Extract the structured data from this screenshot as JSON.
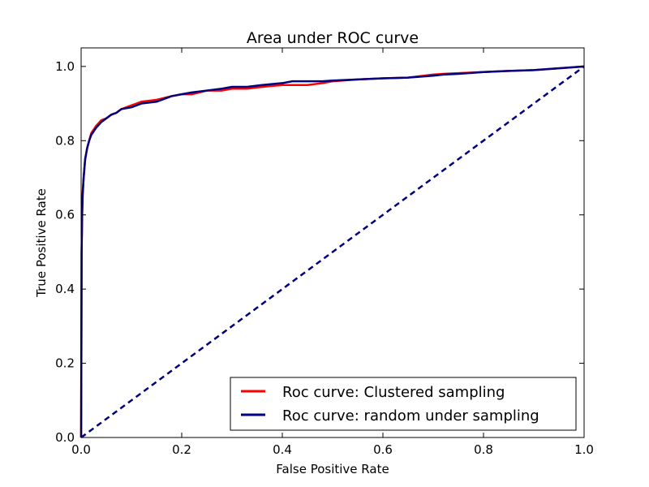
{
  "chart_data": {
    "type": "line",
    "title": "Area under ROC curve",
    "xlabel": "False Positive Rate",
    "ylabel": "True Positive Rate",
    "xlim": [
      0.0,
      1.0
    ],
    "ylim": [
      0.0,
      1.05
    ],
    "xticks": [
      "0.0",
      "0.2",
      "0.4",
      "0.6",
      "0.8",
      "1.0"
    ],
    "yticks": [
      "0.0",
      "0.2",
      "0.4",
      "0.6",
      "0.8",
      "1.0"
    ],
    "grid": false,
    "legend": {
      "position": "lower-right"
    },
    "series": [
      {
        "name": "Roc curve: Clustered sampling",
        "color": "#ff0000",
        "style": "solid",
        "x": [
          0.0,
          0.001,
          0.002,
          0.003,
          0.005,
          0.008,
          0.012,
          0.016,
          0.02,
          0.025,
          0.03,
          0.04,
          0.05,
          0.06,
          0.07,
          0.08,
          0.1,
          0.12,
          0.15,
          0.18,
          0.2,
          0.22,
          0.25,
          0.28,
          0.3,
          0.33,
          0.36,
          0.4,
          0.42,
          0.45,
          0.48,
          0.5,
          0.55,
          0.6,
          0.65,
          0.7,
          0.72,
          0.75,
          0.8,
          0.85,
          0.9,
          0.95,
          1.0
        ],
        "y": [
          0.0,
          0.5,
          0.6,
          0.66,
          0.7,
          0.75,
          0.78,
          0.8,
          0.82,
          0.83,
          0.84,
          0.855,
          0.86,
          0.87,
          0.875,
          0.885,
          0.895,
          0.905,
          0.91,
          0.92,
          0.925,
          0.925,
          0.935,
          0.935,
          0.94,
          0.94,
          0.945,
          0.95,
          0.95,
          0.95,
          0.955,
          0.96,
          0.965,
          0.968,
          0.97,
          0.978,
          0.98,
          0.982,
          0.985,
          0.988,
          0.99,
          0.995,
          1.0
        ]
      },
      {
        "name": "Roc curve: random under sampling",
        "color": "#000080",
        "style": "solid",
        "x": [
          0.0,
          0.001,
          0.002,
          0.003,
          0.005,
          0.008,
          0.012,
          0.016,
          0.02,
          0.025,
          0.03,
          0.04,
          0.05,
          0.06,
          0.07,
          0.08,
          0.1,
          0.12,
          0.15,
          0.18,
          0.2,
          0.22,
          0.25,
          0.28,
          0.3,
          0.33,
          0.36,
          0.4,
          0.42,
          0.45,
          0.48,
          0.5,
          0.55,
          0.6,
          0.65,
          0.7,
          0.72,
          0.75,
          0.8,
          0.85,
          0.9,
          0.95,
          1.0
        ],
        "y": [
          0.0,
          0.5,
          0.6,
          0.65,
          0.7,
          0.75,
          0.78,
          0.8,
          0.815,
          0.825,
          0.835,
          0.85,
          0.86,
          0.87,
          0.875,
          0.885,
          0.89,
          0.9,
          0.905,
          0.92,
          0.925,
          0.93,
          0.935,
          0.94,
          0.945,
          0.945,
          0.95,
          0.955,
          0.96,
          0.96,
          0.96,
          0.962,
          0.965,
          0.968,
          0.97,
          0.975,
          0.978,
          0.98,
          0.985,
          0.988,
          0.99,
          0.995,
          1.0
        ]
      },
      {
        "name": "chance",
        "color": "#000080",
        "style": "dashed",
        "legend": false,
        "x": [
          0.0,
          1.0
        ],
        "y": [
          0.0,
          1.0
        ]
      }
    ]
  }
}
